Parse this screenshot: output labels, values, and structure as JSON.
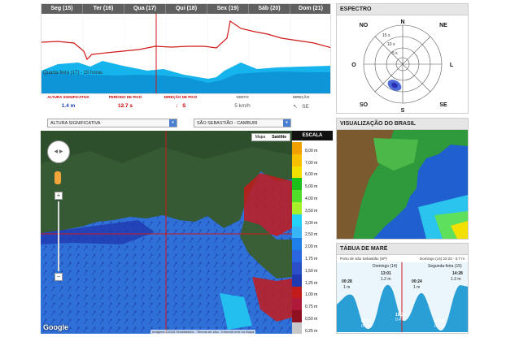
{
  "days": [
    "Seg (15)",
    "Ter (16)",
    "Qua (17)",
    "Qui (18)",
    "Sex (19)",
    "Sáb (20)",
    "Dom (21)"
  ],
  "selected_label": "Quarta-feira (17) - 15 horas",
  "stats": [
    {
      "title": "ALTURA SIGNIFICATIVA",
      "value": "1.4 m"
    },
    {
      "title": "PERÍODO DE PICO",
      "value": "12.7 s"
    },
    {
      "title": "DIREÇÃO DE PICO",
      "value": "S",
      "icon": "arrow-icon"
    },
    {
      "title": "VENTO",
      "value": "5 km/h"
    },
    {
      "title": "DIREÇÃO",
      "value": "SE",
      "icon": "arrow-icon"
    }
  ],
  "controls": {
    "layer": "ALTURA SIGNIFICATIVA",
    "location": "SÃO SEBASTIÃO - CAMBURI"
  },
  "map": {
    "type_map": "Mapa",
    "type_sat": "Satélite",
    "google": "Google",
    "attribution": "Imagens ©2015 TerraMetrics · Termos de Uso · Informar erro no mapa"
  },
  "scale": {
    "title": "ESCALA",
    "items": [
      {
        "label": "8,00 m",
        "color": "#f0a000"
      },
      {
        "label": "7,00 m",
        "color": "#f7c000"
      },
      {
        "label": "6,00 m",
        "color": "#f3e000"
      },
      {
        "label": "5,00 m",
        "color": "#1bc01b"
      },
      {
        "label": "4,00 m",
        "color": "#52df2a"
      },
      {
        "label": "3,50 m",
        "color": "#a8f02a"
      },
      {
        "label": "3,00 m",
        "color": "#25d2f7"
      },
      {
        "label": "2,50 m",
        "color": "#38b5f5"
      },
      {
        "label": "2,00 m",
        "color": "#1f7fe8"
      },
      {
        "label": "1,75 m",
        "color": "#2a66df"
      },
      {
        "label": "1,50 m",
        "color": "#2a4fc9"
      },
      {
        "label": "1,25 m",
        "color": "#1f39b0"
      },
      {
        "label": "1,00 m",
        "color": "#c21b1b"
      },
      {
        "label": "0,75 m",
        "color": "#b01a3a"
      },
      {
        "label": "0,50 m",
        "color": "#8f1020"
      },
      {
        "label": "0,25 m",
        "color": "#c8c8c8"
      }
    ]
  },
  "spectrum": {
    "title": "ESPECTRO",
    "dirs": {
      "N": "N",
      "NE": "NE",
      "L": "L",
      "SE": "SE",
      "S": "S",
      "SO": "SO",
      "O": "O",
      "NO": "NO"
    },
    "rings": [
      "15 s",
      "10 s",
      "5 s"
    ]
  },
  "brazil": {
    "title": "VISUALIZAÇÃO DO BRASIL"
  },
  "tide": {
    "title": "TÁBUA DE MARÉ",
    "port": "Porto de São Sebastião (SP)",
    "now": "Domingo (14) 22:22 - 0,7 m",
    "day1": "Domingo (14)",
    "day2": "Segunda-feira (15)",
    "highs": [
      {
        "time": "00:28",
        "height": "1 m"
      },
      {
        "time": "13:01",
        "height": "1.2 m"
      },
      {
        "time": "00:24",
        "height": "1 m"
      },
      {
        "time": "14:28",
        "height": "1.3 m"
      }
    ],
    "lows": [
      {
        "time": "07:11",
        "height": "0.1 m"
      },
      {
        "time": "19:38",
        "height": "0.4 m"
      },
      {
        "time": "07:56",
        "height": "0.1 m"
      }
    ]
  }
}
